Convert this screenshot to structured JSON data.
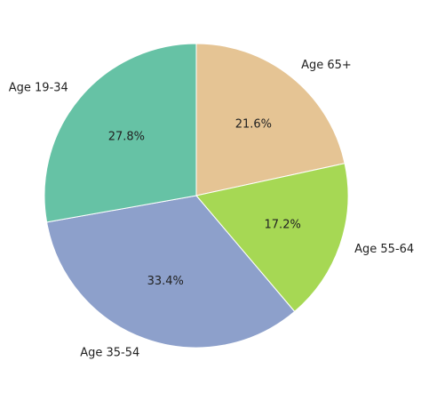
{
  "chart_data": {
    "type": "pie",
    "categories": [
      "Age 65+",
      "Age 55-64",
      "Age 35-54",
      "Age 19-34"
    ],
    "values": [
      21.6,
      17.2,
      33.4,
      27.8
    ],
    "value_labels": [
      "21.6%",
      "17.2%",
      "33.4%",
      "27.8%"
    ],
    "colors": [
      "#e5c494",
      "#a6d854",
      "#8da0cb",
      "#66c2a5"
    ]
  }
}
